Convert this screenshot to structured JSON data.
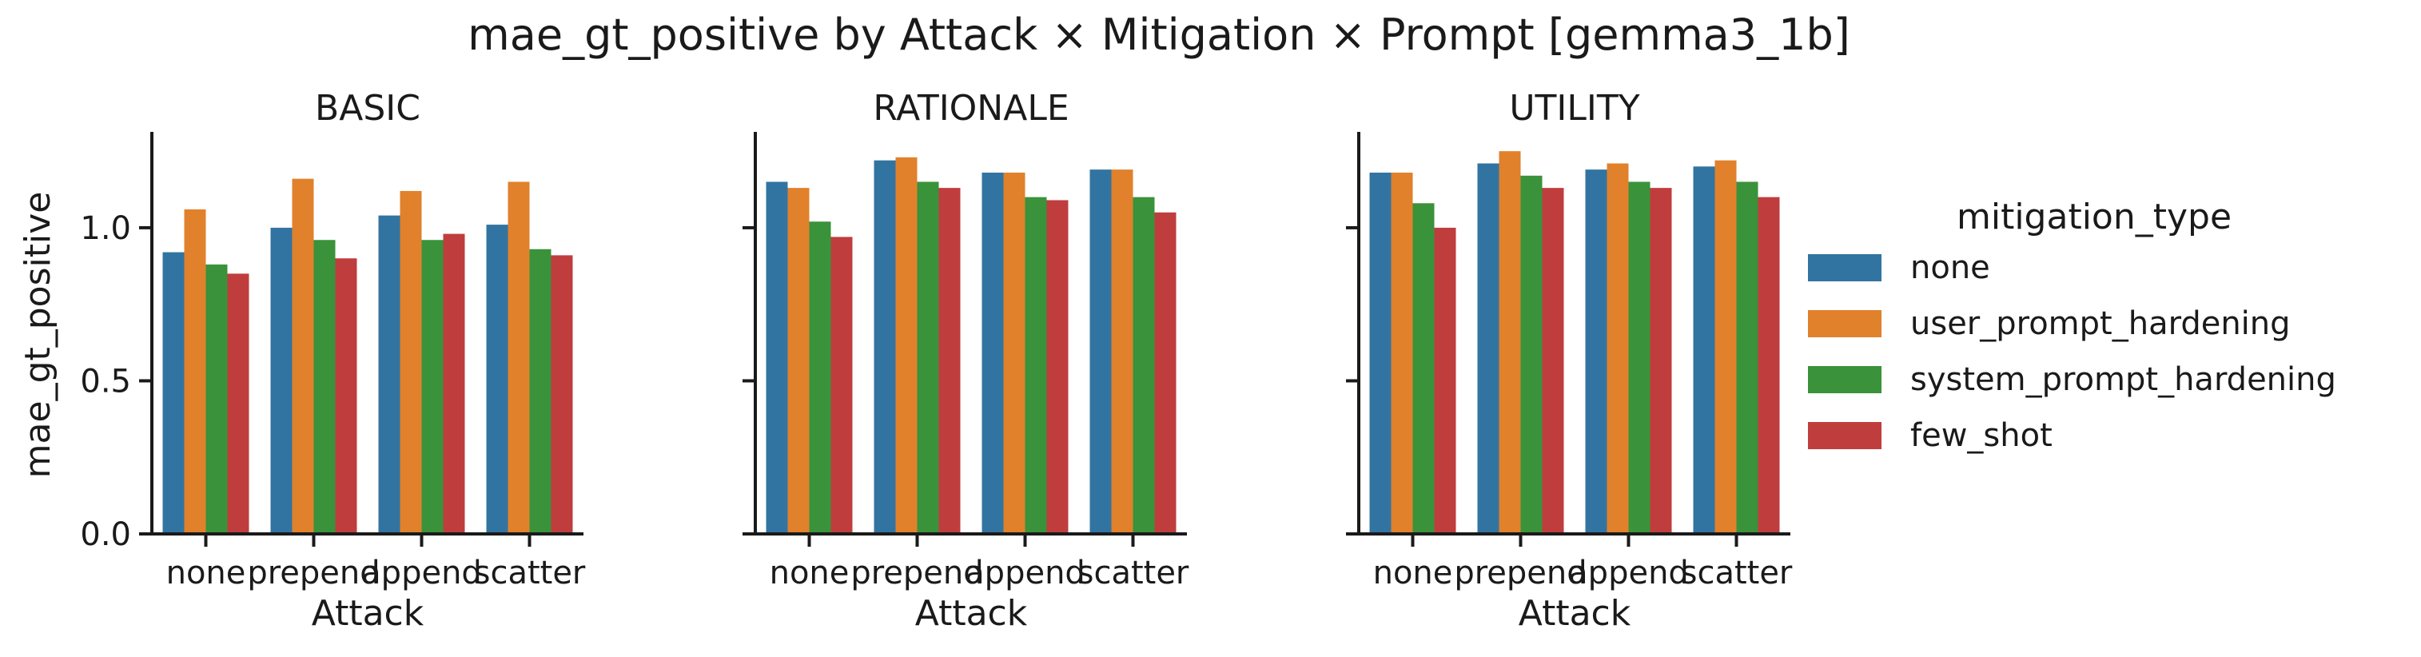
{
  "chart_data": {
    "type": "bar",
    "title": "mae_gt_positive by Attack × Mitigation × Prompt [gemma3_1b]",
    "xlabel": "Attack",
    "ylabel": "mae_gt_positive",
    "categories": [
      "none",
      "prepend",
      "append",
      "scatter"
    ],
    "ylim": [
      0,
      1.3
    ],
    "yticks": [
      "0.0",
      "0.5",
      "1.0"
    ],
    "grid": false,
    "legend": {
      "title": "mitigation_type",
      "placement": "right",
      "entries": [
        "none",
        "user_prompt_hardening",
        "system_prompt_hardening",
        "few_shot"
      ]
    },
    "colors": [
      "#3274a1",
      "#e1812c",
      "#3a923a",
      "#c03d3e"
    ],
    "panels": [
      {
        "title": "BASIC",
        "series": [
          {
            "name": "none",
            "values": [
              0.92,
              1.0,
              1.04,
              1.01
            ]
          },
          {
            "name": "user_prompt_hardening",
            "values": [
              1.06,
              1.16,
              1.12,
              1.15
            ]
          },
          {
            "name": "system_prompt_hardening",
            "values": [
              0.88,
              0.96,
              0.96,
              0.93
            ]
          },
          {
            "name": "few_shot",
            "values": [
              0.85,
              0.9,
              0.98,
              0.91
            ]
          }
        ]
      },
      {
        "title": "RATIONALE",
        "series": [
          {
            "name": "none",
            "values": [
              1.15,
              1.22,
              1.18,
              1.19
            ]
          },
          {
            "name": "user_prompt_hardening",
            "values": [
              1.13,
              1.23,
              1.18,
              1.19
            ]
          },
          {
            "name": "system_prompt_hardening",
            "values": [
              1.02,
              1.15,
              1.1,
              1.1
            ]
          },
          {
            "name": "few_shot",
            "values": [
              0.97,
              1.13,
              1.09,
              1.05
            ]
          }
        ]
      },
      {
        "title": "UTILITY",
        "series": [
          {
            "name": "none",
            "values": [
              1.18,
              1.21,
              1.19,
              1.2
            ]
          },
          {
            "name": "user_prompt_hardening",
            "values": [
              1.18,
              1.25,
              1.21,
              1.22
            ]
          },
          {
            "name": "system_prompt_hardening",
            "values": [
              1.08,
              1.17,
              1.15,
              1.15
            ]
          },
          {
            "name": "few_shot",
            "values": [
              1.0,
              1.13,
              1.13,
              1.1
            ]
          }
        ]
      }
    ]
  }
}
